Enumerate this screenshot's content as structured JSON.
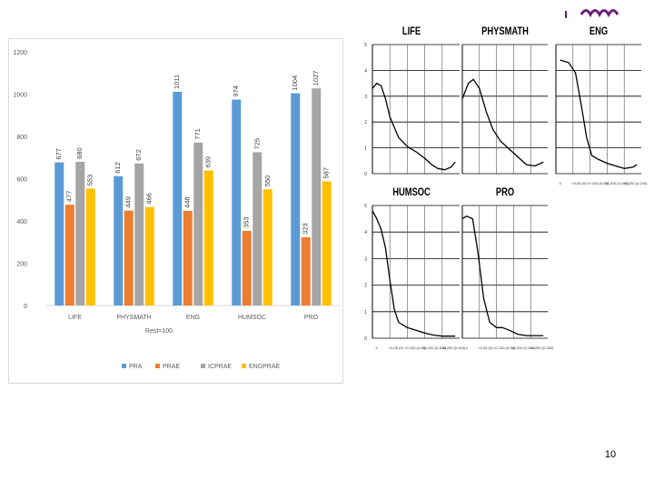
{
  "page": {
    "page_number": "10"
  },
  "chart_data": [
    {
      "type": "bar",
      "categories": [
        "LIFE",
        "PHYSMATH",
        "ENG",
        "HUMSOC",
        "PRO"
      ],
      "xlabel": "Rest=100",
      "ylim": [
        0,
        1200
      ],
      "yticks": [
        0,
        200,
        400,
        600,
        800,
        1000,
        1200
      ],
      "grid": false,
      "legend_position": "bottom",
      "series": [
        {
          "name": "PRA",
          "color": "#5b9bd5",
          "values": [
            677,
            612,
            1011,
            974,
            1004
          ],
          "labels": [
            "677",
            "612",
            "1011",
            "974",
            "1004"
          ]
        },
        {
          "name": "PRAE",
          "color": "#ed7d31",
          "values": [
            477,
            449,
            448,
            353,
            323
          ],
          "labels": [
            "477",
            "449",
            "448",
            "353",
            "323"
          ]
        },
        {
          "name": "ICPRAE",
          "color": "#a5a5a5",
          "values": [
            680,
            672,
            771,
            725,
            1027
          ],
          "labels": [
            "680",
            "672",
            "771",
            "725",
            "1027"
          ]
        },
        {
          "name": "ENGPRAE",
          "color": "#ffc000",
          "values": [
            553,
            466,
            639,
            550,
            587
          ],
          "labels": [
            "553",
            "466",
            "639",
            "550",
            "587"
          ]
        }
      ]
    },
    {
      "type": "line",
      "title": "LIFE",
      "ylim": [
        0,
        5
      ],
      "yticks": [
        0,
        1,
        2,
        3,
        4,
        5
      ],
      "ytick_labels": [
        "0",
        "1",
        "2",
        "3",
        "4",
        "5"
      ],
      "xlim": [
        0,
        10
      ],
      "grid": true,
      "series": [
        {
          "x": [
            0,
            0.5,
            1,
            1.5,
            2,
            3,
            4,
            5,
            6,
            6.8,
            7.5,
            8.3,
            9,
            9.5
          ],
          "y": [
            3.3,
            3.5,
            3.4,
            2.9,
            2.2,
            1.4,
            1.05,
            0.85,
            0.6,
            0.35,
            0.2,
            0.15,
            0.25,
            0.45
          ]
        }
      ]
    },
    {
      "type": "line",
      "title": "PHYSMATH",
      "ylim": [
        0,
        5
      ],
      "yticks": [
        0,
        1,
        2,
        3,
        4,
        5
      ],
      "xlim": [
        0,
        10
      ],
      "grid": true,
      "series": [
        {
          "x": [
            0,
            0.7,
            1.3,
            2,
            2.8,
            3.6,
            4.5,
            5.5,
            6.5,
            7.5,
            8.5,
            9.5
          ],
          "y": [
            2.9,
            3.5,
            3.65,
            3.3,
            2.4,
            1.7,
            1.25,
            0.95,
            0.65,
            0.35,
            0.3,
            0.45
          ]
        }
      ]
    },
    {
      "type": "line",
      "title": "ENG",
      "ylim": [
        0,
        5
      ],
      "yticks": [
        0,
        1,
        2,
        3,
        4,
        5
      ],
      "xlim": [
        0,
        10
      ],
      "grid": true,
      "x_tick_labels": [
        "0",
        "<0.05 (0)",
        "<0.100 (0.05)",
        "<0.200 (0.100)",
        "<0.250 (0.200)"
      ],
      "series": [
        {
          "x": [
            0.5,
            1.5,
            2.3,
            3,
            3.6,
            4.2,
            5,
            6,
            7,
            8,
            9,
            9.5
          ],
          "y": [
            4.4,
            4.3,
            3.9,
            2.6,
            1.4,
            0.7,
            0.55,
            0.4,
            0.3,
            0.2,
            0.25,
            0.35
          ]
        }
      ]
    },
    {
      "type": "line",
      "title": "HUMSOC",
      "ylim": [
        0,
        5
      ],
      "yticks": [
        0,
        1,
        2,
        3,
        4,
        5
      ],
      "ytick_labels": [
        "0",
        "1",
        "2",
        "3",
        "4",
        "5"
      ],
      "xlim": [
        0,
        10
      ],
      "grid": true,
      "x_tick_labels": [
        "0",
        "<0.05 (0)",
        "<0.100 (0.05)",
        "<0.200 (0.100)",
        "<0.250 (0.200)"
      ],
      "series": [
        {
          "x": [
            0,
            0.5,
            1,
            1.5,
            2,
            2.5,
            3,
            4,
            5,
            6,
            7,
            8,
            9,
            9.5
          ],
          "y": [
            4.8,
            4.5,
            4.1,
            3.4,
            2.2,
            1.1,
            0.6,
            0.4,
            0.3,
            0.2,
            0.12,
            0.08,
            0.08,
            0.08
          ]
        }
      ]
    },
    {
      "type": "line",
      "title": "PRO",
      "ylim": [
        0,
        5
      ],
      "yticks": [
        0,
        1,
        2,
        3,
        4,
        5
      ],
      "xlim": [
        0,
        10
      ],
      "grid": true,
      "x_tick_labels": [
        "0",
        "<0.05 (0)",
        "<0.100 (0.05)",
        "<0.200 (0.100)",
        "<0.250 (0.200)"
      ],
      "series": [
        {
          "x": [
            0,
            0.5,
            1.2,
            1.8,
            2.5,
            3.2,
            4,
            4.7,
            5.5,
            6.5,
            7.5,
            8.5,
            9.5
          ],
          "y": [
            4.5,
            4.6,
            4.5,
            3.3,
            1.5,
            0.6,
            0.4,
            0.4,
            0.3,
            0.15,
            0.1,
            0.1,
            0.1
          ]
        }
      ]
    }
  ]
}
